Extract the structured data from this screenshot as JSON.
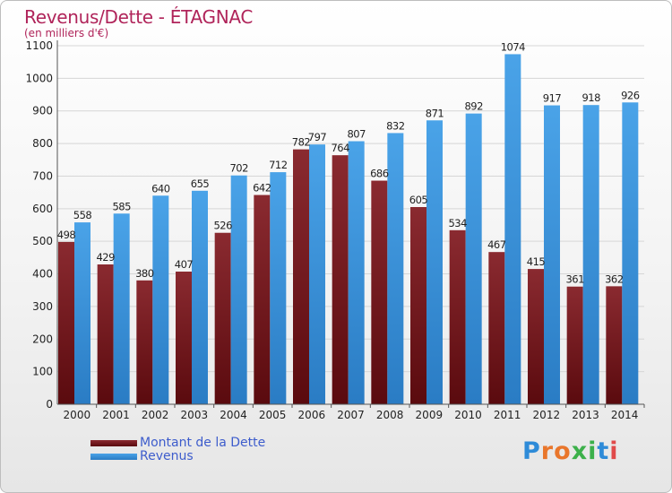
{
  "chart_data": {
    "type": "bar",
    "title": "Revenus/Dette - ÉTAGNAC",
    "subtitle": "(en milliers d'€)",
    "categories": [
      "2000",
      "2001",
      "2002",
      "2003",
      "2004",
      "2005",
      "2006",
      "2007",
      "2008",
      "2009",
      "2010",
      "2011",
      "2012",
      "2013",
      "2014"
    ],
    "series": [
      {
        "name": "Montant de la Dette",
        "color": "#7a1d22",
        "values": [
          498,
          429,
          380,
          407,
          526,
          642,
          782,
          764,
          686,
          605,
          534,
          467,
          415,
          361,
          362
        ]
      },
      {
        "name": "Revenus",
        "color": "#3b93d9",
        "values": [
          558,
          585,
          640,
          655,
          702,
          712,
          797,
          807,
          832,
          871,
          892,
          1074,
          917,
          918,
          926
        ]
      }
    ],
    "ylim": [
      0,
      1100
    ],
    "yticks": [
      0,
      100,
      200,
      300,
      400,
      500,
      600,
      700,
      800,
      900,
      1000,
      1100
    ],
    "grid": true,
    "legend": "bottom-left"
  },
  "logo": {
    "letters": [
      "P",
      "r",
      "o",
      "x",
      "i",
      "t",
      "i"
    ],
    "colors": [
      "#2e8bd8",
      "#e9762b",
      "#e9762b",
      "#3cb04a",
      "#3cb04a",
      "#2e8bd8",
      "#e04a4a"
    ]
  }
}
